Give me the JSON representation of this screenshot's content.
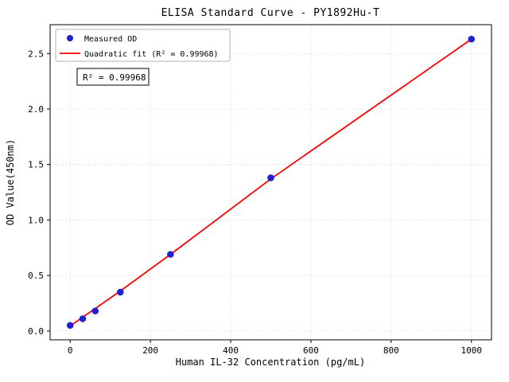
{
  "chart_data": {
    "type": "scatter",
    "title": "ELISA Standard Curve - PY1892Hu-T",
    "xlabel": "Human IL-32 Concentration (pg/mL)",
    "ylabel": "OD Value(450nm)",
    "xlim": [
      -50,
      1050
    ],
    "ylim": [
      -0.08,
      2.76
    ],
    "xticks": [
      0,
      200,
      400,
      600,
      800,
      1000
    ],
    "xtick_labels": [
      "0",
      "200",
      "400",
      "600",
      "800",
      "1000"
    ],
    "yticks": [
      0.0,
      0.5,
      1.0,
      1.5,
      2.0,
      2.5
    ],
    "ytick_labels": [
      "0.0",
      "0.5",
      "1.0",
      "1.5",
      "2.0",
      "2.5"
    ],
    "grid": true,
    "legend_position": "upper-left",
    "series": [
      {
        "name": "Quadratic fit (R² = 0.99968)",
        "type": "line",
        "color": "#ff0000",
        "x": [
          0,
          125,
          250,
          500,
          750,
          1000
        ],
        "y": [
          0.045,
          0.36,
          0.69,
          1.37,
          2.0,
          2.63
        ]
      },
      {
        "name": "Measured OD",
        "type": "scatter",
        "color": "#2020d0",
        "x": [
          0,
          31.25,
          62.5,
          125,
          250,
          500,
          1000
        ],
        "y": [
          0.05,
          0.11,
          0.18,
          0.35,
          0.69,
          1.38,
          2.63
        ]
      }
    ],
    "annotation": {
      "text": "R² = 0.99968"
    }
  }
}
